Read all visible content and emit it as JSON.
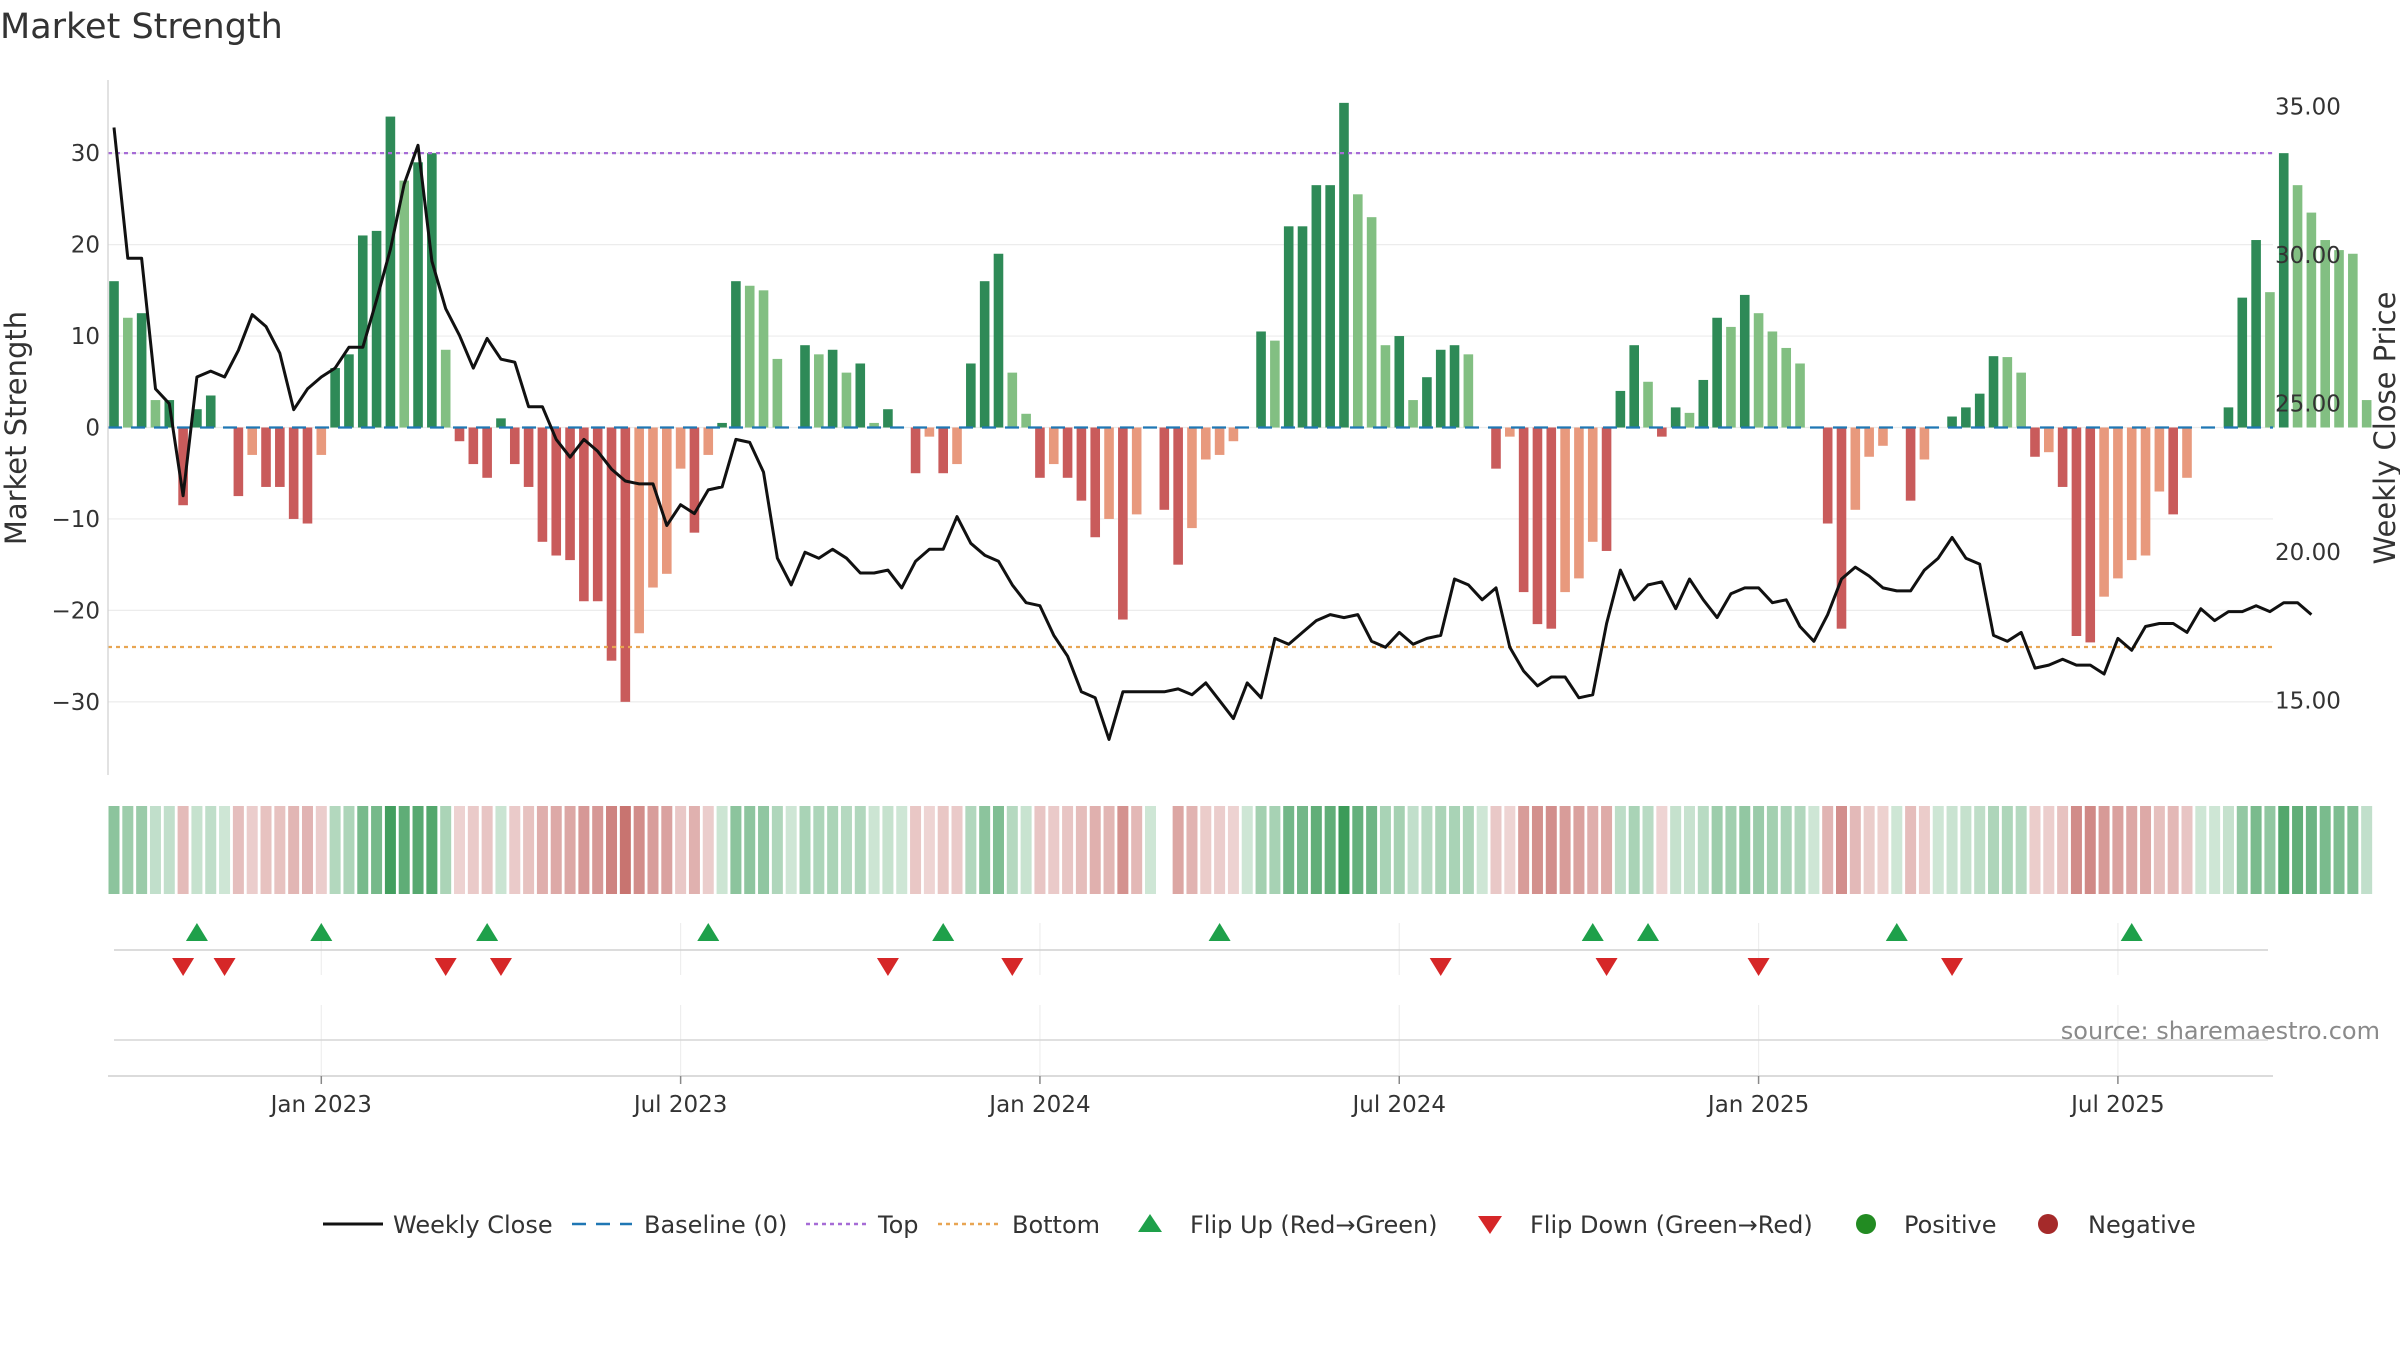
{
  "chart_data": {
    "type": "bar",
    "title": "Market Strength",
    "ylabel_left": "Market Strength",
    "ylabel_right": "Weekly Close Price",
    "ylim_left": [
      -38,
      38
    ],
    "ylim_right": [
      12.5,
      35.9
    ],
    "left_ticks": [
      30,
      20,
      10,
      0,
      -10,
      -20,
      -30
    ],
    "left_tick_labels": [
      "30",
      "20",
      "10",
      "0",
      "−10",
      "−20",
      "−30"
    ],
    "right_ticks": [
      35,
      30,
      25,
      20,
      15
    ],
    "right_tick_labels": [
      "35.00",
      "30.00",
      "25.00",
      "20.00",
      "15.00"
    ],
    "x_ticks": [
      {
        "week": 15,
        "label": "Jan 2023"
      },
      {
        "week": 41,
        "label": "Jul 2023"
      },
      {
        "week": 67,
        "label": "Jan 2024"
      },
      {
        "week": 93,
        "label": "Jul 2024"
      },
      {
        "week": 119,
        "label": "Jan 2025"
      },
      {
        "week": 145,
        "label": "Jul 2025"
      }
    ],
    "top_level": 30,
    "bottom_level": -24,
    "grid": true,
    "strength": [
      16,
      12,
      12.5,
      3,
      3,
      -8.5,
      2,
      3.5,
      0,
      -7.5,
      -3,
      -6.5,
      -6.5,
      -10,
      -10.5,
      -3,
      6.5,
      8,
      21,
      21.5,
      34,
      27,
      29,
      30,
      8.5,
      -1.5,
      -4,
      -5.5,
      1,
      -4,
      -6.5,
      -12.5,
      -14,
      -14.5,
      -19,
      -19,
      -25.5,
      -30,
      -22.5,
      -17.5,
      -16,
      -4.5,
      -11.5,
      -3,
      0.5,
      16,
      15.5,
      15,
      7.5,
      0,
      9,
      8,
      8.5,
      6,
      7,
      0.5,
      2,
      0,
      -5,
      -1,
      -5,
      -4,
      7,
      16,
      19,
      6,
      1.5,
      -5.5,
      -4,
      -5.5,
      -8,
      -12,
      -10,
      -21,
      -9.5,
      0,
      -9,
      -15,
      -11,
      -3.5,
      -3,
      -1.5,
      0,
      10.5,
      9.5,
      22,
      22,
      26.5,
      26.5,
      35.5,
      25.5,
      23,
      9,
      10,
      3,
      5.5,
      8.5,
      9,
      8,
      0,
      -4.5,
      -1,
      -18,
      -21.5,
      -22,
      -18,
      -16.5,
      -12.5,
      -13.5,
      4,
      9,
      5,
      -1,
      2.2,
      1.6,
      5.2,
      12,
      11,
      14.5,
      12.5,
      10.5,
      8.7,
      7,
      0,
      -10.5,
      -22,
      -9,
      -3.2,
      -2,
      0,
      -8,
      -3.5,
      0,
      1.2,
      2.2,
      3.7,
      7.8,
      7.7,
      6,
      -3.2,
      -2.7,
      -6.5,
      -22.8,
      -23.5,
      -18.5,
      -16.5,
      -14.5,
      -14,
      -7,
      -9.5,
      -5.5,
      0,
      0,
      2.2,
      14.2,
      20.5,
      14.8,
      30,
      26.5,
      23.5,
      20.5,
      19.4,
      19,
      3
    ],
    "weekly_close": [
      34.3,
      29.9,
      29.9,
      25.5,
      25,
      21.9,
      25.9,
      26.1,
      25.9,
      26.8,
      28,
      27.6,
      26.7,
      24.8,
      25.5,
      25.9,
      26.2,
      26.9,
      26.9,
      28.5,
      30.2,
      32.4,
      33.7,
      29.8,
      28.2,
      27.3,
      26.2,
      27.2,
      26.5,
      26.4,
      24.9,
      24.9,
      23.8,
      23.2,
      23.8,
      23.4,
      22.8,
      22.4,
      22.3,
      22.3,
      20.9,
      21.6,
      21.3,
      22.1,
      22.2,
      23.8,
      23.7,
      22.7,
      19.8,
      18.9,
      20,
      19.8,
      20.1,
      19.8,
      19.3,
      19.3,
      19.4,
      18.8,
      19.7,
      20.1,
      20.1,
      21.2,
      20.3,
      19.9,
      19.7,
      18.9,
      18.3,
      18.2,
      17.2,
      16.5,
      15.3,
      15.1,
      13.7,
      15.3,
      15.3,
      15.3,
      15.3,
      15.4,
      15.2,
      15.6,
      15,
      14.4,
      15.6,
      15.1,
      17.1,
      16.9,
      17.3,
      17.7,
      17.9,
      17.8,
      17.9,
      17,
      16.8,
      17.3,
      16.9,
      17.1,
      17.2,
      19.1,
      18.9,
      18.4,
      18.8,
      16.8,
      16,
      15.5,
      15.8,
      15.8,
      15.1,
      15.2,
      17.6,
      19.4,
      18.4,
      18.9,
      19,
      18.1,
      19.1,
      18.4,
      17.8,
      18.6,
      18.8,
      18.8,
      18.3,
      18.4,
      17.5,
      17,
      17.9,
      19.1,
      19.5,
      19.2,
      18.8,
      18.7,
      18.7,
      19.4,
      19.8,
      20.5,
      19.8,
      19.6,
      17.2,
      17,
      17.3,
      16.1,
      16.2,
      16.4,
      16.2,
      16.2,
      15.9,
      17.1,
      16.7,
      17.5,
      17.6,
      17.6,
      17.3,
      18.1,
      17.7,
      18,
      18,
      18.2,
      18,
      18.3,
      18.3,
      17.9
    ],
    "heat_strip": {
      "positive_color": "#3a9a57",
      "negative_color": "#c0605c",
      "gap_week": 76
    },
    "flip_up_weeks": [
      6,
      15,
      27,
      43,
      60,
      80,
      107,
      111,
      129,
      146
    ],
    "flip_down_weeks": [
      5,
      8,
      24,
      28,
      56,
      65,
      96,
      108,
      119,
      133
    ],
    "colors": {
      "strong_green": "#2e8a57",
      "light_green": "#82bf82",
      "strong_red": "#c95b5b",
      "light_red": "#e8997d",
      "price_line": "#111111",
      "baseline": "#1f77b4",
      "top_line": "#a66bd6",
      "bottom_line": "#e8a552",
      "flip_up": "#1ea04a",
      "flip_down": "#d62728",
      "positive_dot": "#228b22",
      "negative_dot": "#a52a2a"
    },
    "legend": {
      "placement": "bottom",
      "entries": [
        {
          "key": "weekly_close",
          "label": "Weekly Close"
        },
        {
          "key": "baseline",
          "label": "Baseline (0)"
        },
        {
          "key": "top",
          "label": "Top"
        },
        {
          "key": "bottom",
          "label": "Bottom"
        },
        {
          "key": "flip_up",
          "label": "Flip Up (Red→Green)"
        },
        {
          "key": "flip_down",
          "label": "Flip Down (Green→Red)"
        },
        {
          "key": "positive",
          "label": "Positive"
        },
        {
          "key": "negative",
          "label": "Negative"
        }
      ]
    },
    "source": "source: sharemaestro.com"
  }
}
